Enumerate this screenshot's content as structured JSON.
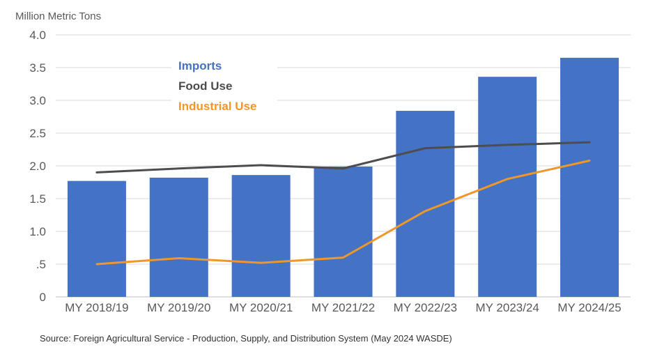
{
  "chart_data": {
    "type": "bar",
    "title": "",
    "ylabel": "Million Metric Tons",
    "xlabel": "",
    "ylim": [
      0,
      4.0
    ],
    "yticks": [
      0,
      0.5,
      1.0,
      1.5,
      2.0,
      2.5,
      3.0,
      3.5,
      4.0
    ],
    "ytick_labels": [
      "0",
      ".5",
      "1.0",
      "1.5",
      "2.0",
      "2.5",
      "3.0",
      "3.5",
      "4.0"
    ],
    "categories": [
      "MY 2018/19",
      "MY 2019/20",
      "MY 2020/21",
      "MY 2021/22",
      "MY 2022/23",
      "MY 2023/24",
      "MY 2024/25"
    ],
    "series": [
      {
        "name": "Imports",
        "kind": "bar",
        "color": "#4472c4",
        "values": [
          1.77,
          1.82,
          1.86,
          1.99,
          2.84,
          3.36,
          3.65
        ]
      },
      {
        "name": "Food Use",
        "kind": "line",
        "color": "#4d4d4d",
        "values": [
          1.9,
          1.96,
          2.01,
          1.96,
          2.27,
          2.32,
          2.36
        ]
      },
      {
        "name": "Industrial Use",
        "kind": "line",
        "color": "#f0962a",
        "values": [
          0.5,
          0.59,
          0.52,
          0.6,
          1.31,
          1.8,
          2.08
        ]
      }
    ],
    "legend_position": "top-left",
    "grid": true,
    "source": "Source: Foreign Agricultural Service - Production, Supply, and Distribution System  (May 2024 WASDE)"
  }
}
